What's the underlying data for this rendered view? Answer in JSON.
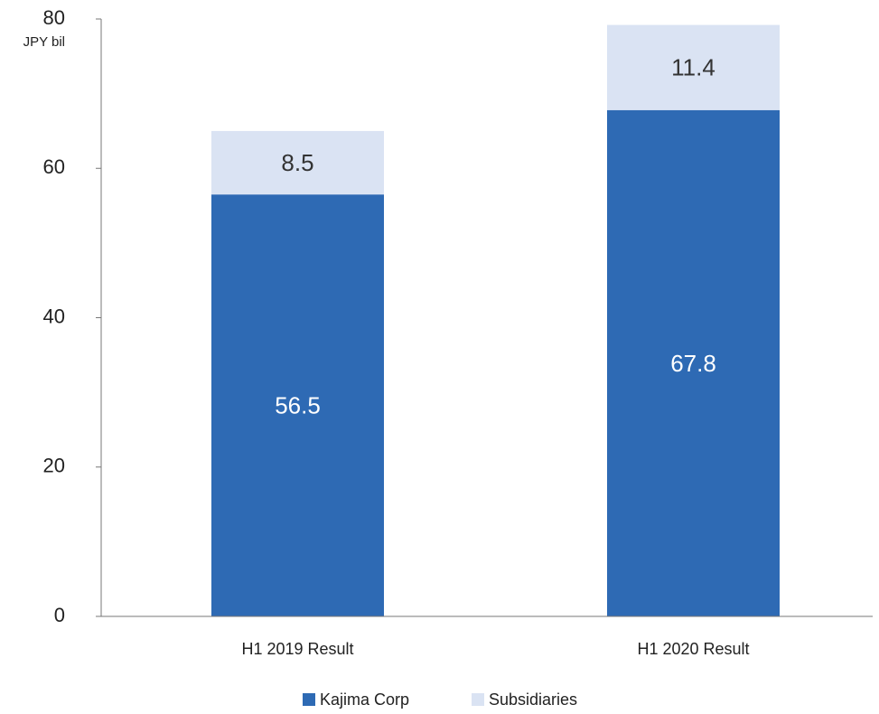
{
  "chart_data": {
    "type": "stacked_bar",
    "y_unit_label": "JPY bil",
    "categories": [
      "H1 2019 Result",
      "H1 2020 Result"
    ],
    "series": [
      {
        "name": "Kajima Corp",
        "color": "#2e6ab4",
        "values": [
          56.5,
          67.8
        ]
      },
      {
        "name": "Subsidiaries",
        "color": "#dae3f3",
        "values": [
          8.5,
          11.4
        ]
      }
    ],
    "ylim": [
      0,
      80
    ],
    "yticks": [
      0,
      20,
      40,
      60,
      80
    ],
    "grid": false,
    "legend": "bottom"
  }
}
